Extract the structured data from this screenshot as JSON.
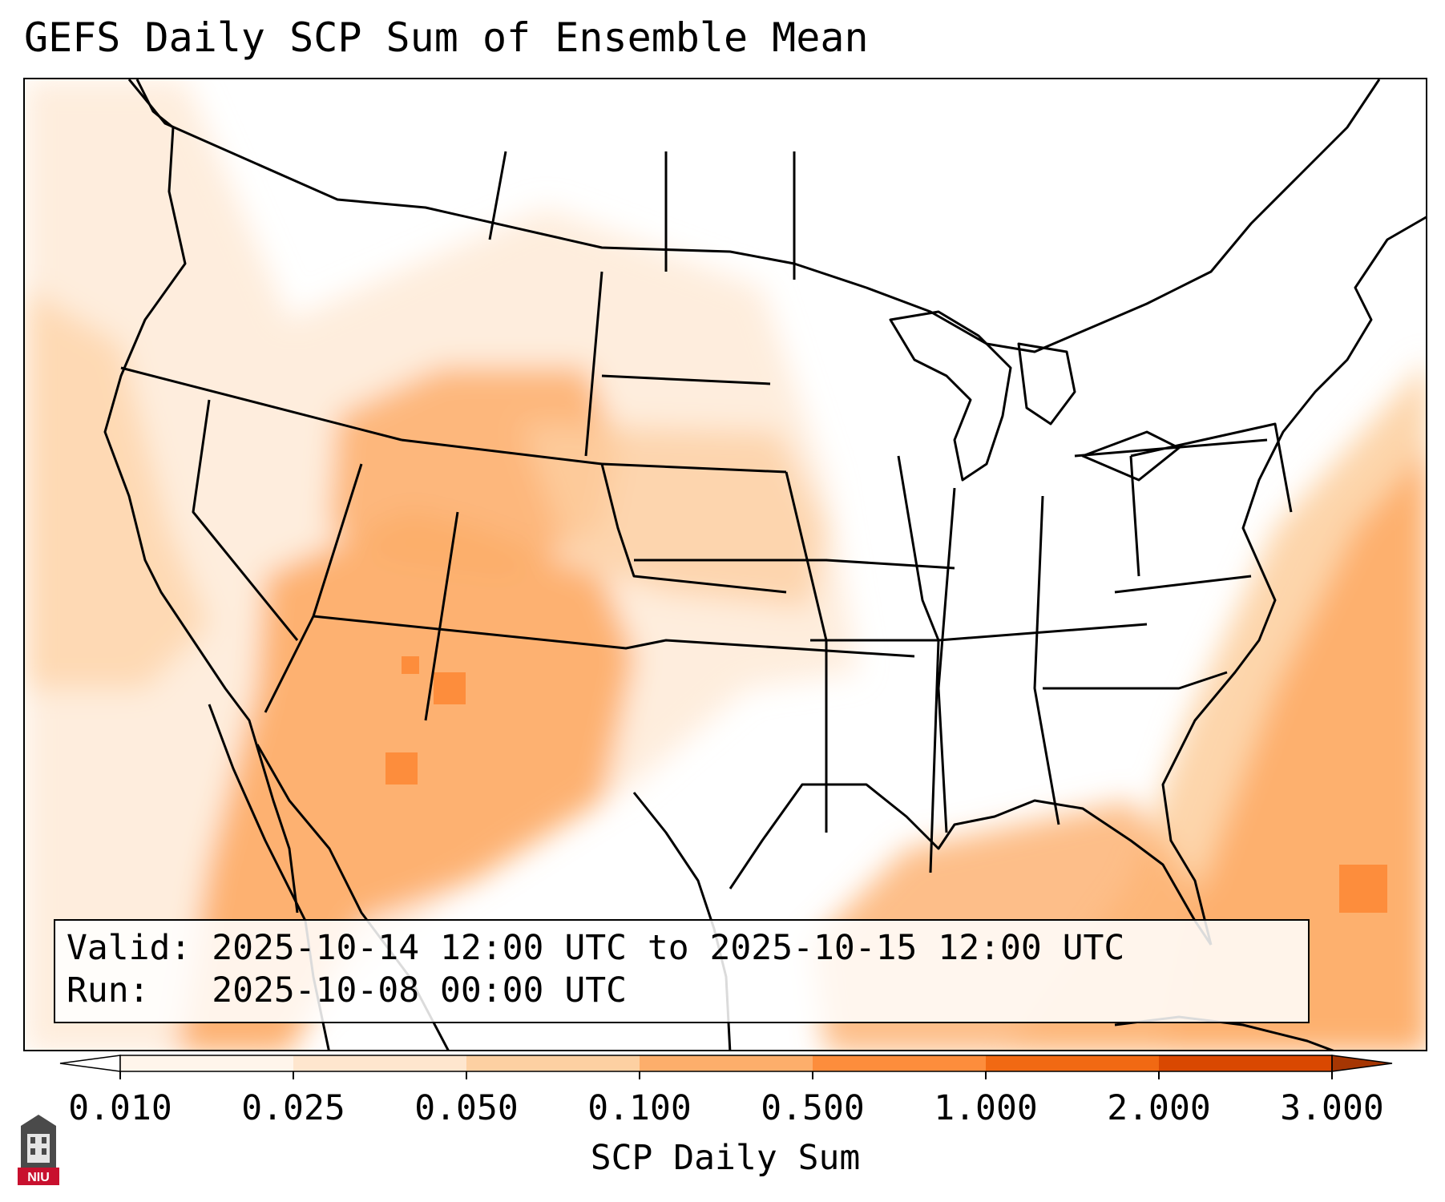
{
  "title": "GEFS Daily SCP Sum of Ensemble Mean",
  "info_box": {
    "valid_line": "Valid: 2025-10-14 12:00 UTC to 2025-10-15 12:00 UTC",
    "run_line": "Run:   2025-10-08 00:00 UTC"
  },
  "colorbar": {
    "label": "SCP Daily Sum",
    "ticks": [
      "0.010",
      "0.025",
      "0.050",
      "0.100",
      "0.500",
      "1.000",
      "2.000",
      "3.000"
    ],
    "colors": [
      "#fff5eb",
      "#fee6ce",
      "#fdd0a2",
      "#fdae6b",
      "#fd8d3c",
      "#f16913",
      "#d94801",
      "#a63603"
    ]
  },
  "logo": {
    "text": "NIU"
  }
}
